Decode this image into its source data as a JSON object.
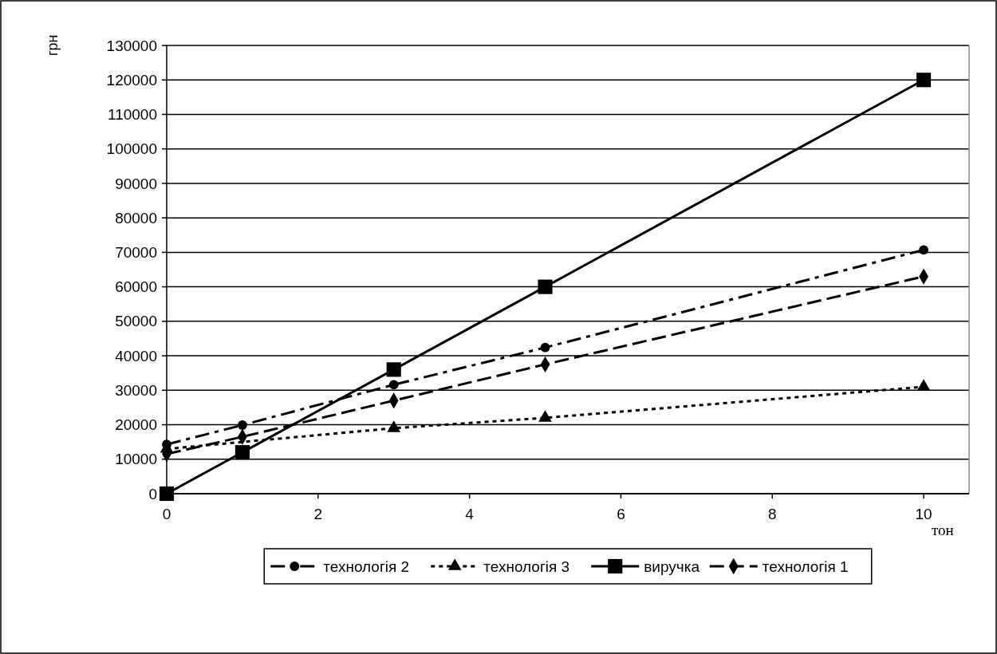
{
  "chart_data": {
    "type": "line",
    "xlabel": "тон",
    "ylabel": "грн",
    "xlim": [
      0,
      10.6
    ],
    "xticks": [
      0,
      2,
      4,
      6,
      8,
      10
    ],
    "ylim": [
      0,
      130000
    ],
    "yticks": [
      0,
      10000,
      20000,
      30000,
      40000,
      50000,
      60000,
      70000,
      80000,
      90000,
      100000,
      110000,
      120000,
      130000
    ],
    "grid": "y",
    "legend": "bottom",
    "series": [
      {
        "name": "технологія 2",
        "color": "#000000",
        "marker": "circle",
        "line_style": "dashdot",
        "x": [
          0,
          1,
          3,
          5,
          10
        ],
        "values": [
          14300,
          19900,
          31600,
          42400,
          70700
        ]
      },
      {
        "name": "технологія 3",
        "color": "#000000",
        "marker": "triangle",
        "line_style": "dotted",
        "x": [
          0,
          1,
          3,
          5,
          10
        ],
        "values": [
          13000,
          null,
          19000,
          22000,
          31000
        ]
      },
      {
        "name": "виручка",
        "color": "#000000",
        "marker": "square",
        "line_style": "solid",
        "x": [
          0,
          1,
          3,
          5,
          10
        ],
        "values": [
          0,
          12000,
          36000,
          60000,
          120000
        ]
      },
      {
        "name": "технологія 1",
        "color": "#000000",
        "marker": "diamond",
        "line_style": "dashed",
        "x": [
          0,
          1,
          3,
          5,
          10
        ],
        "values": [
          11500,
          16500,
          27000,
          37500,
          63000
        ]
      }
    ]
  }
}
